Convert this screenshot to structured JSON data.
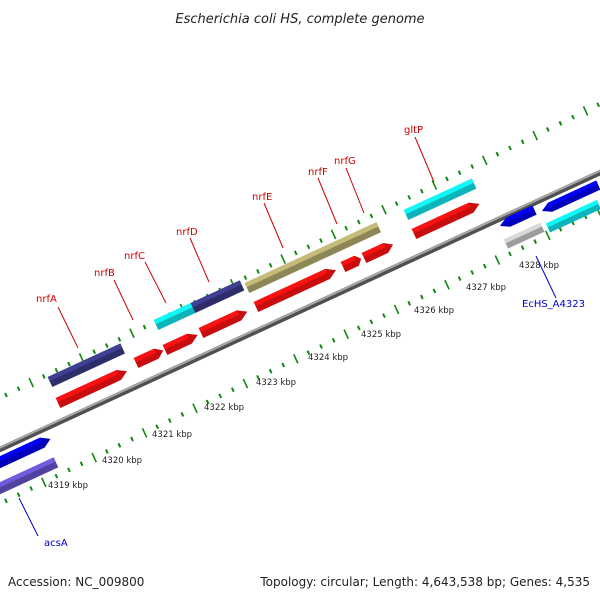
{
  "title": "Escherichia coli HS, complete genome",
  "footer": {
    "accession": "Accession: NC_009800",
    "topology": "Topology: circular; Length: 4,643,538 bp; Genes: 4,535"
  },
  "colors": {
    "backbone": "#808080",
    "tick": "#118811",
    "label_red": "#cc0000",
    "label_blue": "#0000cc",
    "red": "#ff1111",
    "blue": "#0000ee",
    "navy": "#3a3a88",
    "cyan": "#11e8ee",
    "olive": "#b5ad70",
    "gray": "#c8c8c8",
    "lavender": "#6655cc"
  },
  "scale_labels": [
    "4319 kbp",
    "4320 kbp",
    "4321 kbp",
    "4322 kbp",
    "4323 kbp",
    "4324 kbp",
    "4325 kbp",
    "4326 kbp",
    "4327 kbp",
    "4328 kbp"
  ],
  "gene_labels": [
    {
      "text": "acsA",
      "color_key": "label_blue"
    },
    {
      "text": "nrfA",
      "color_key": "label_red"
    },
    {
      "text": "nrfB",
      "color_key": "label_red"
    },
    {
      "text": "nrfC",
      "color_key": "label_red"
    },
    {
      "text": "nrfD",
      "color_key": "label_red"
    },
    {
      "text": "nrfE",
      "color_key": "label_red"
    },
    {
      "text": "nrfF",
      "color_key": "label_red"
    },
    {
      "text": "nrfG",
      "color_key": "label_red"
    },
    {
      "text": "gltP",
      "color_key": "label_red"
    },
    {
      "text": "EcHS_A4323",
      "color_key": "label_blue"
    }
  ]
}
